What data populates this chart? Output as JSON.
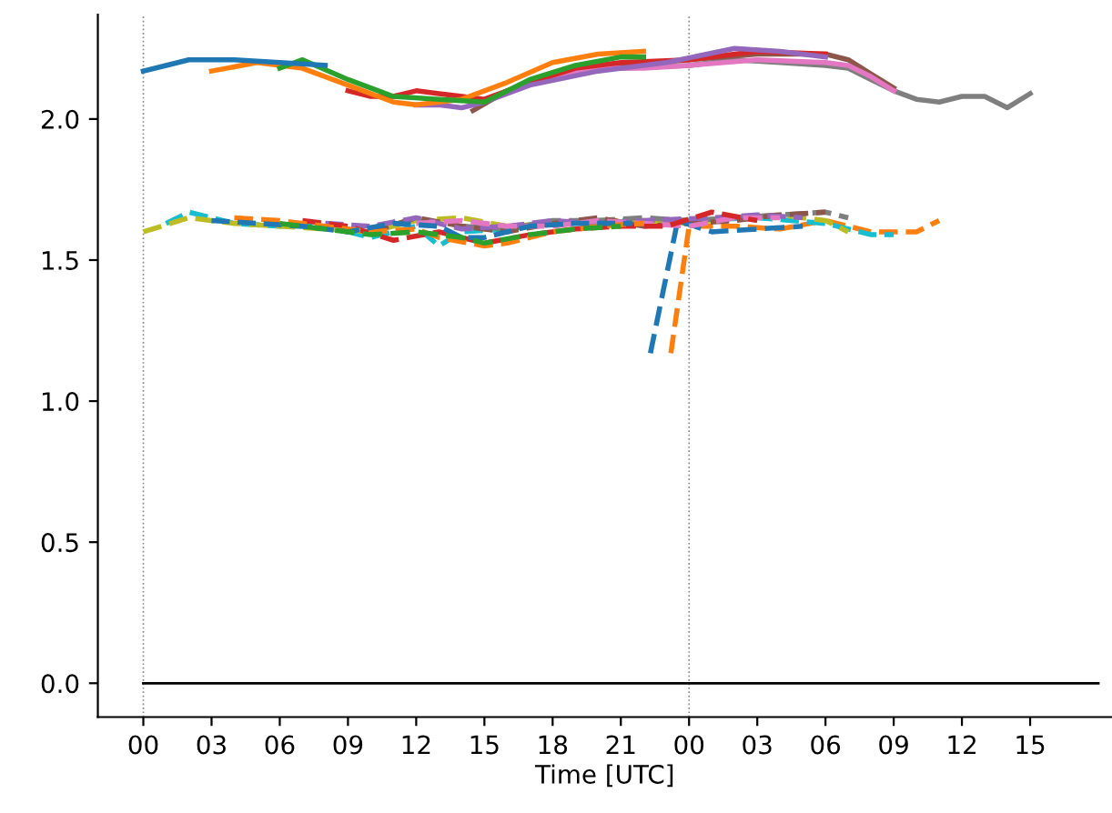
{
  "chart_data": {
    "type": "line",
    "xlabel": "Time [UTC]",
    "xlim": [
      -2,
      42.6
    ],
    "ylim": [
      -0.12,
      2.37
    ],
    "xticks": [
      {
        "value": 0,
        "label": "00"
      },
      {
        "value": 3,
        "label": "03"
      },
      {
        "value": 6,
        "label": "06"
      },
      {
        "value": 9,
        "label": "09"
      },
      {
        "value": 12,
        "label": "12"
      },
      {
        "value": 15,
        "label": "15"
      },
      {
        "value": 18,
        "label": "18"
      },
      {
        "value": 21,
        "label": "21"
      },
      {
        "value": 24,
        "label": "00"
      },
      {
        "value": 27,
        "label": "03"
      },
      {
        "value": 30,
        "label": "06"
      },
      {
        "value": 33,
        "label": "09"
      },
      {
        "value": 36,
        "label": "12"
      },
      {
        "value": 39,
        "label": "15"
      }
    ],
    "yticks": [
      {
        "value": 0,
        "label": "0.0"
      },
      {
        "value": 0.5,
        "label": "0.5"
      },
      {
        "value": 1,
        "label": "1.0"
      },
      {
        "value": 1.5,
        "label": "1.5"
      },
      {
        "value": 2,
        "label": "2.0"
      }
    ],
    "ref_lines": [
      {
        "axis": "x",
        "value": 0,
        "color": "#888888",
        "line_style": "dotted"
      },
      {
        "axis": "x",
        "value": 24,
        "color": "#888888",
        "line_style": "dotted"
      }
    ],
    "series": [
      {
        "color": "#000000",
        "line_style": "solid",
        "x": [
          0,
          42
        ],
        "values": [
          0,
          0
        ]
      },
      {
        "color": "#1f77b4",
        "line_style": "solid",
        "x": [
          0,
          1,
          2,
          4,
          6,
          8
        ],
        "values": [
          2.17,
          2.19,
          2.21,
          2.21,
          2.2,
          2.19
        ]
      },
      {
        "color": "#ff7f0e",
        "line_style": "solid",
        "x": [
          3,
          5,
          7,
          9,
          11,
          12,
          14,
          16,
          18,
          20,
          22
        ],
        "values": [
          2.17,
          2.2,
          2.18,
          2.12,
          2.06,
          2.05,
          2.07,
          2.13,
          2.2,
          2.23,
          2.24
        ]
      },
      {
        "color": "#2ca02c",
        "line_style": "solid",
        "x": [
          6,
          7,
          9,
          11,
          13,
          15,
          17,
          19,
          21,
          22
        ],
        "values": [
          2.18,
          2.21,
          2.14,
          2.08,
          2.07,
          2.06,
          2.14,
          2.19,
          2.22,
          2.22
        ]
      },
      {
        "color": "#d62728",
        "line_style": "solid",
        "x": [
          9,
          10,
          11,
          12,
          13,
          15,
          17,
          19,
          21,
          24,
          27,
          30
        ],
        "values": [
          2.1,
          2.08,
          2.08,
          2.1,
          2.09,
          2.07,
          2.13,
          2.18,
          2.2,
          2.21,
          2.24,
          2.23
        ]
      },
      {
        "color": "#9467bd",
        "line_style": "solid",
        "x": [
          12,
          13,
          14,
          15,
          17,
          20,
          23,
          26,
          28,
          30
        ],
        "values": [
          2.05,
          2.05,
          2.04,
          2.06,
          2.12,
          2.17,
          2.2,
          2.25,
          2.24,
          2.22
        ]
      },
      {
        "color": "#8c564b",
        "line_style": "solid",
        "x": [
          14.5,
          16,
          18,
          21,
          24,
          27,
          30,
          31,
          32,
          33
        ],
        "values": [
          2.03,
          2.1,
          2.15,
          2.19,
          2.21,
          2.23,
          2.23,
          2.21,
          2.16,
          2.11
        ]
      },
      {
        "color": "#e377c2",
        "line_style": "solid",
        "x": [
          18,
          20,
          22,
          24,
          27,
          30,
          31,
          32,
          33
        ],
        "values": [
          2.15,
          2.18,
          2.18,
          2.19,
          2.21,
          2.2,
          2.19,
          2.15,
          2.1
        ]
      },
      {
        "color": "#7f7f7f",
        "line_style": "solid",
        "x": [
          21,
          24,
          26,
          28,
          30,
          31,
          32,
          33,
          34,
          35,
          36,
          37,
          38,
          39
        ],
        "values": [
          2.18,
          2.19,
          2.21,
          2.2,
          2.19,
          2.18,
          2.14,
          2.1,
          2.07,
          2.06,
          2.08,
          2.08,
          2.04,
          2.09
        ]
      },
      {
        "color": "#bcbd22",
        "line_style": "dashed",
        "x": [
          0,
          2,
          4,
          6,
          8,
          10,
          12,
          14,
          16,
          18,
          20,
          22,
          24,
          26,
          28,
          30,
          31
        ],
        "values": [
          1.6,
          1.65,
          1.63,
          1.62,
          1.61,
          1.6,
          1.64,
          1.65,
          1.62,
          1.63,
          1.64,
          1.64,
          1.63,
          1.65,
          1.66,
          1.64,
          1.6
        ]
      },
      {
        "color": "#17becf",
        "line_style": "dashed",
        "x": [
          1,
          2,
          4,
          6,
          8,
          10,
          12,
          13,
          14,
          16,
          18,
          20,
          22,
          24,
          27,
          30,
          32,
          33
        ],
        "values": [
          1.63,
          1.67,
          1.63,
          1.62,
          1.62,
          1.58,
          1.62,
          1.55,
          1.6,
          1.61,
          1.63,
          1.64,
          1.64,
          1.64,
          1.65,
          1.63,
          1.59,
          1.59
        ]
      },
      {
        "color": "#1f77b4",
        "line_style": "dashed",
        "x": [
          3,
          5,
          7,
          9,
          11,
          13,
          14,
          15,
          17,
          19,
          21.5
        ],
        "values": [
          1.64,
          1.63,
          1.62,
          1.6,
          1.63,
          1.62,
          1.58,
          1.58,
          1.62,
          1.63,
          1.63
        ]
      },
      {
        "color": "#ff7f0e",
        "line_style": "dashed",
        "x": [
          4,
          6,
          8,
          10,
          12,
          13,
          15,
          16,
          18,
          20,
          22
        ],
        "values": [
          1.65,
          1.64,
          1.62,
          1.6,
          1.61,
          1.58,
          1.55,
          1.56,
          1.6,
          1.62,
          1.63
        ]
      },
      {
        "color": "#2ca02c",
        "line_style": "dashed",
        "x": [
          6,
          8,
          10,
          12,
          14,
          15,
          17,
          19,
          21
        ],
        "values": [
          1.63,
          1.61,
          1.59,
          1.6,
          1.58,
          1.56,
          1.59,
          1.61,
          1.62
        ]
      },
      {
        "color": "#d62728",
        "line_style": "dashed",
        "x": [
          7,
          9,
          11,
          13,
          15,
          17,
          19,
          21,
          23,
          25,
          27
        ],
        "values": [
          1.64,
          1.62,
          1.57,
          1.6,
          1.56,
          1.59,
          1.61,
          1.62,
          1.62,
          1.67,
          1.64
        ]
      },
      {
        "color": "#9467bd",
        "line_style": "dashed",
        "x": [
          8,
          10,
          12,
          14,
          16,
          18,
          20,
          22,
          25,
          27,
          29
        ],
        "values": [
          1.63,
          1.62,
          1.65,
          1.61,
          1.62,
          1.64,
          1.63,
          1.64,
          1.65,
          1.66,
          1.65
        ]
      },
      {
        "color": "#8c564b",
        "line_style": "dashed",
        "x": [
          10,
          12,
          14,
          16,
          18,
          20,
          22,
          24,
          26,
          28,
          30
        ],
        "values": [
          1.6,
          1.65,
          1.62,
          1.6,
          1.63,
          1.65,
          1.62,
          1.63,
          1.64,
          1.66,
          1.67
        ]
      },
      {
        "color": "#e377c2",
        "line_style": "dashed",
        "x": [
          12,
          14,
          16,
          18,
          20,
          22,
          24,
          26,
          28
        ],
        "values": [
          1.63,
          1.64,
          1.62,
          1.62,
          1.64,
          1.63,
          1.62,
          1.65,
          1.65
        ]
      },
      {
        "color": "#7f7f7f",
        "line_style": "dashed",
        "x": [
          14,
          16,
          18,
          20,
          22,
          24,
          26,
          28,
          30,
          31
        ],
        "values": [
          1.62,
          1.61,
          1.64,
          1.64,
          1.65,
          1.64,
          1.65,
          1.66,
          1.67,
          1.65
        ]
      },
      {
        "color": "#1f77b4",
        "line_style": "dashed",
        "x": [
          22.3,
          23.5,
          25,
          27,
          29
        ],
        "values": [
          1.17,
          1.64,
          1.6,
          1.61,
          1.62
        ]
      },
      {
        "color": "#ff7f0e",
        "line_style": "dashed",
        "x": [
          23.2,
          24,
          26,
          28,
          30,
          32,
          34,
          35
        ],
        "values": [
          1.17,
          1.62,
          1.62,
          1.61,
          1.64,
          1.6,
          1.6,
          1.64
        ]
      }
    ]
  }
}
